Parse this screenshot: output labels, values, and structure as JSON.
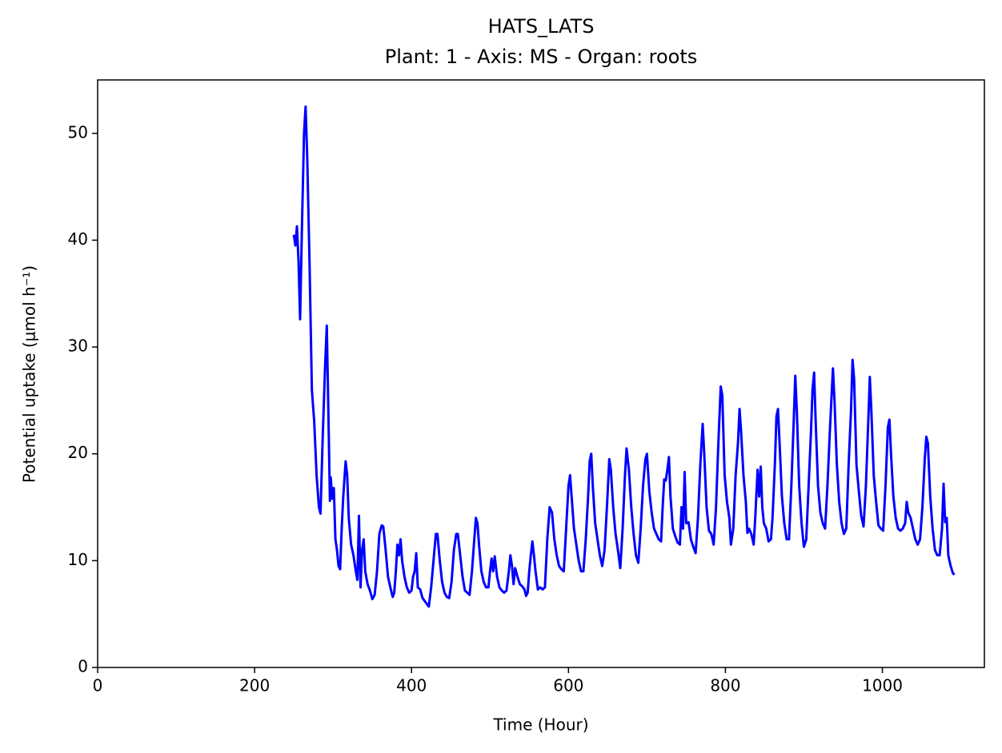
{
  "chart_data": {
    "type": "line",
    "title": "HATS_LATS",
    "subtitle": "Plant: 1 - Axis: MS - Organ: roots",
    "x_label": "Time (Hour)",
    "y_label": "Potential uptake (μmol h⁻¹)",
    "xlim": [
      0,
      1130
    ],
    "ylim": [
      0,
      55
    ],
    "xticks": [
      0,
      200,
      400,
      600,
      800,
      1000
    ],
    "yticks": [
      0,
      10,
      20,
      30,
      40,
      50
    ],
    "grid": false,
    "x": [
      250,
      252,
      254,
      256,
      258,
      260,
      263,
      265,
      267,
      270,
      273,
      276,
      279,
      282,
      284,
      287,
      290,
      292,
      294,
      296,
      297,
      299,
      301,
      303,
      305,
      307,
      309,
      311,
      313,
      316,
      318,
      320,
      323,
      326,
      329,
      331,
      333,
      335,
      337,
      339,
      341,
      344,
      347,
      350,
      353,
      356,
      359,
      362,
      364,
      367,
      370,
      373,
      376,
      378,
      380,
      382,
      384,
      386,
      388,
      391,
      394,
      397,
      400,
      402,
      404,
      406,
      408,
      411,
      414,
      418,
      422,
      425,
      428,
      431,
      433,
      436,
      439,
      442,
      445,
      448,
      451,
      454,
      457,
      459,
      462,
      465,
      468,
      471,
      474,
      477,
      480,
      482,
      484,
      486,
      489,
      492,
      495,
      498,
      500,
      502,
      504,
      506,
      509,
      512,
      515,
      518,
      521,
      524,
      526,
      528,
      530,
      532,
      535,
      538,
      541,
      544,
      546,
      548,
      550,
      552,
      554,
      556,
      558,
      561,
      564,
      567,
      570,
      573,
      576,
      579,
      582,
      585,
      588,
      591,
      594,
      597,
      600,
      602,
      604,
      607,
      610,
      613,
      616,
      619,
      622,
      625,
      627,
      629,
      631,
      634,
      637,
      640,
      643,
      646,
      649,
      652,
      654,
      657,
      660,
      663,
      666,
      669,
      672,
      674,
      677,
      680,
      683,
      686,
      689,
      692,
      695,
      698,
      700,
      703,
      706,
      709,
      712,
      715,
      718,
      720,
      722,
      724,
      726,
      728,
      730,
      733,
      736,
      739,
      742,
      744,
      746,
      748,
      750,
      753,
      756,
      759,
      762,
      765,
      768,
      771,
      773,
      776,
      779,
      782,
      785,
      788,
      791,
      794,
      796,
      799,
      802,
      805,
      807,
      810,
      813,
      816,
      818,
      820,
      823,
      826,
      828,
      830,
      833,
      836,
      838,
      841,
      843,
      845,
      847,
      849,
      852,
      855,
      858,
      860,
      863,
      865,
      867,
      869,
      872,
      875,
      878,
      881,
      884,
      887,
      889,
      891,
      894,
      897,
      900,
      903,
      906,
      909,
      911,
      913,
      915,
      918,
      921,
      924,
      927,
      930,
      933,
      935,
      937,
      939,
      942,
      945,
      948,
      951,
      954,
      957,
      960,
      962,
      964,
      967,
      970,
      973,
      976,
      979,
      982,
      984,
      986,
      989,
      992,
      995,
      998,
      1001,
      1004,
      1007,
      1009,
      1011,
      1014,
      1017,
      1020,
      1023,
      1026,
      1029,
      1031,
      1033,
      1036,
      1039,
      1042,
      1045,
      1048,
      1051,
      1054,
      1056,
      1058,
      1061,
      1064,
      1067,
      1070,
      1073,
      1076,
      1078,
      1080,
      1082,
      1084,
      1087,
      1090,
      1092
    ],
    "series": [
      {
        "color": "#0000ff",
        "values": [
          40.5,
          39.5,
          41.3,
          38,
          32.6,
          40,
          50,
          52.5,
          48,
          38,
          26,
          23,
          18,
          15,
          14.4,
          22,
          28.5,
          32,
          24,
          15.6,
          17.8,
          15.8,
          16.8,
          12,
          11,
          9.5,
          9.2,
          13,
          16,
          19.3,
          18,
          14,
          11.5,
          10.5,
          9,
          8.2,
          14.2,
          7.5,
          11,
          12,
          9,
          7.8,
          7.2,
          6.4,
          6.8,
          9,
          12.5,
          13.3,
          13.2,
          11,
          8.5,
          7.5,
          6.6,
          7,
          9,
          11.5,
          10.5,
          12,
          10,
          8.5,
          7.5,
          7,
          7.2,
          8.5,
          9,
          10.7,
          7.5,
          7.3,
          6.5,
          6.1,
          5.7,
          7.5,
          10,
          12.5,
          12.5,
          10,
          8,
          7,
          6.6,
          6.5,
          8,
          11,
          12.5,
          12.5,
          10.5,
          8.5,
          7.2,
          7,
          6.8,
          9,
          12,
          14,
          13.5,
          11.5,
          9,
          8,
          7.5,
          7.5,
          9,
          10.2,
          9,
          10.4,
          8.5,
          7.5,
          7.2,
          7,
          7.2,
          9,
          10.5,
          9.5,
          7.8,
          9.3,
          8.5,
          7.8,
          7.6,
          7.3,
          6.7,
          7,
          9,
          10.5,
          11.8,
          10.5,
          9,
          7.3,
          7.5,
          7.3,
          7.5,
          12,
          15,
          14.5,
          12,
          10.5,
          9.5,
          9.2,
          9,
          13,
          17,
          18,
          16,
          13,
          11.5,
          10,
          9,
          9,
          12,
          16,
          19.3,
          20,
          17,
          13.5,
          12,
          10.5,
          9.5,
          11,
          15,
          19.5,
          18.5,
          15,
          12.5,
          11,
          9.3,
          13,
          18,
          20.5,
          18.5,
          15,
          12.5,
          10.5,
          9.8,
          13,
          17,
          19.5,
          20,
          16.5,
          14.5,
          13,
          12.5,
          12,
          11.8,
          15,
          17.6,
          17.5,
          18.5,
          19.7,
          16,
          13,
          12.3,
          11.7,
          11.5,
          15,
          13,
          18.3,
          13.5,
          13.6,
          12,
          11.3,
          10.7,
          14,
          19,
          22.8,
          20,
          15,
          12.8,
          12.5,
          11.5,
          15,
          21,
          26.3,
          25.5,
          18,
          15.5,
          14,
          11.5,
          13,
          18,
          21,
          24.2,
          22,
          18,
          15.5,
          12.6,
          13,
          12.5,
          11.5,
          14,
          18.5,
          16,
          18.8,
          15,
          13.5,
          13,
          11.8,
          12,
          14,
          19,
          23.5,
          24.2,
          21,
          16,
          13.5,
          12,
          12,
          17,
          23,
          27.3,
          24,
          17,
          13.5,
          11.3,
          12,
          17,
          22,
          26,
          27.6,
          23,
          17,
          14.5,
          13.5,
          13,
          17,
          22,
          25,
          28,
          25,
          19,
          15.5,
          13.5,
          12.5,
          13,
          19,
          24,
          28.8,
          27,
          19,
          16.5,
          14.2,
          13.2,
          17,
          23,
          27.2,
          24,
          18,
          15.5,
          13.3,
          13,
          12.8,
          17,
          22.5,
          23.2,
          20,
          16,
          14,
          13,
          12.8,
          13,
          13.5,
          15.5,
          14.5,
          14,
          13,
          12,
          11.5,
          12,
          15,
          19.5,
          21.6,
          21,
          16,
          13,
          11,
          10.5,
          10.5,
          13,
          17.2,
          13.6,
          14,
          10.5,
          9.5,
          8.8,
          8.7
        ]
      }
    ]
  }
}
